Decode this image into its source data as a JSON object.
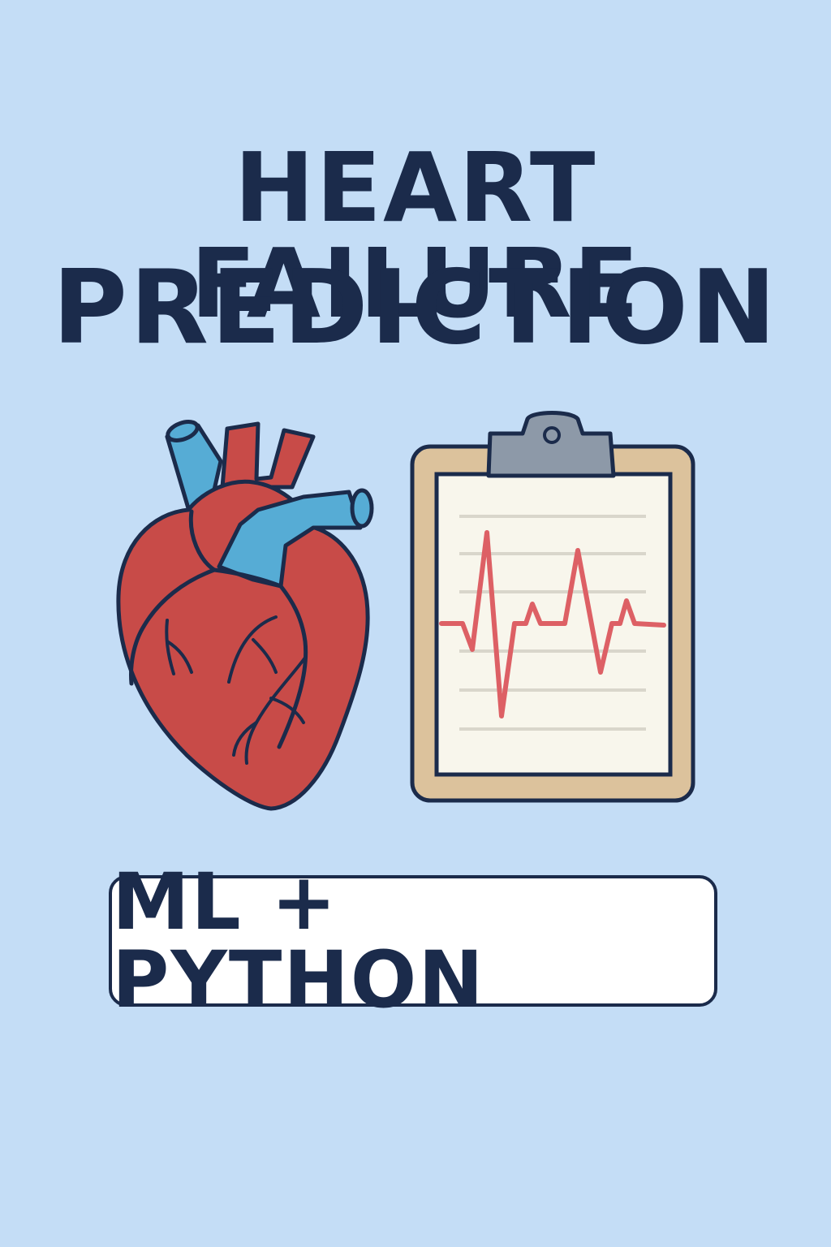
{
  "poster": {
    "title_line_1": "HEART FAILURE",
    "title_line_2": "PREDICTION",
    "badge_text": "ML + PYTHON"
  },
  "icons": {
    "heart": "anatomical-heart-icon",
    "clipboard": "clipboard-ecg-icon"
  },
  "colors": {
    "background": "#c4ddf6",
    "text": "#1b2b4b",
    "heart_red": "#c84b48",
    "vessel_blue": "#56acd5",
    "clipboard_board": "#dcc29c",
    "paper": "#f8f6ec",
    "ecg_line": "#dd6065",
    "clip_gray": "#8d99a8"
  }
}
